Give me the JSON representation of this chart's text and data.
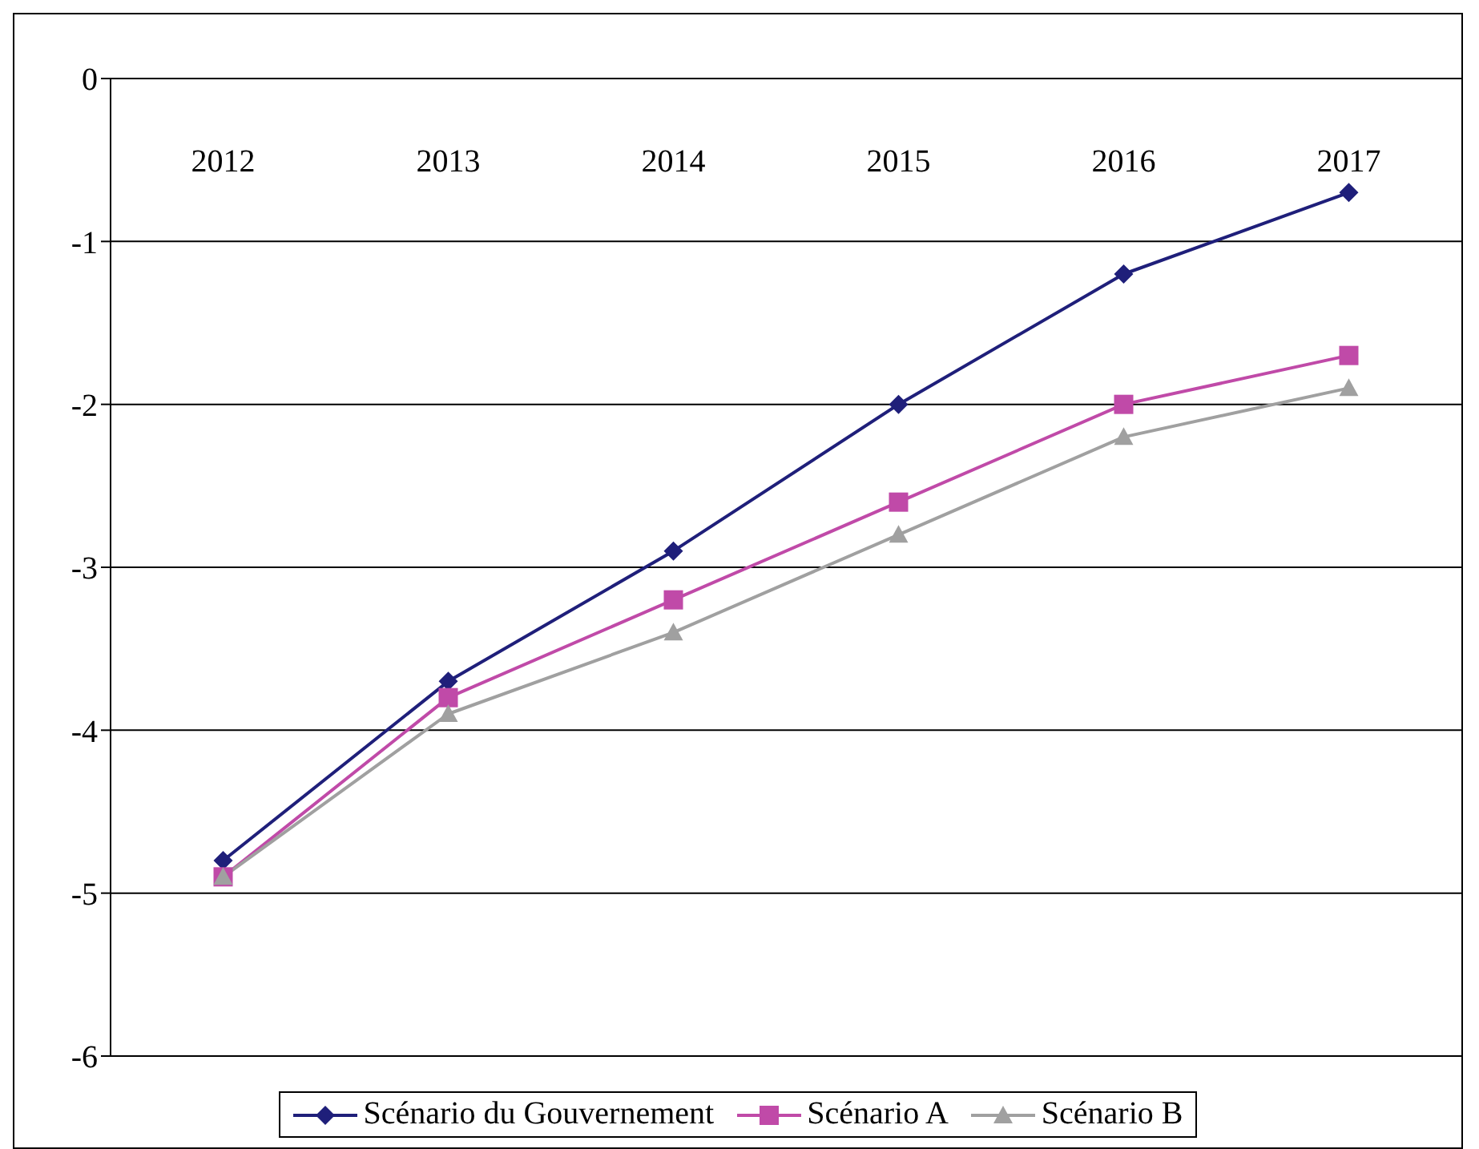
{
  "chart_data": {
    "type": "line",
    "categories": [
      "2012",
      "2013",
      "2014",
      "2015",
      "2016",
      "2017"
    ],
    "series": [
      {
        "name": "Scénario du Gouvernement",
        "color": "#1f1f7a",
        "marker": "diamond",
        "values": [
          -4.8,
          -3.7,
          -2.9,
          -2.0,
          -1.2,
          -0.7
        ]
      },
      {
        "name": "Scénario A",
        "color": "#c04aa8",
        "marker": "square",
        "values": [
          -4.9,
          -3.8,
          -3.2,
          -2.6,
          -2.0,
          -1.7
        ]
      },
      {
        "name": "Scénario B",
        "color": "#a0a0a0",
        "marker": "triangle",
        "values": [
          -4.9,
          -3.9,
          -3.4,
          -2.8,
          -2.2,
          -1.9
        ]
      }
    ],
    "ylim": [
      -6,
      0
    ],
    "yticks": [
      -6,
      -5,
      -4,
      -3,
      -2,
      -1,
      0
    ],
    "grid": "y",
    "legend": "bottom"
  }
}
